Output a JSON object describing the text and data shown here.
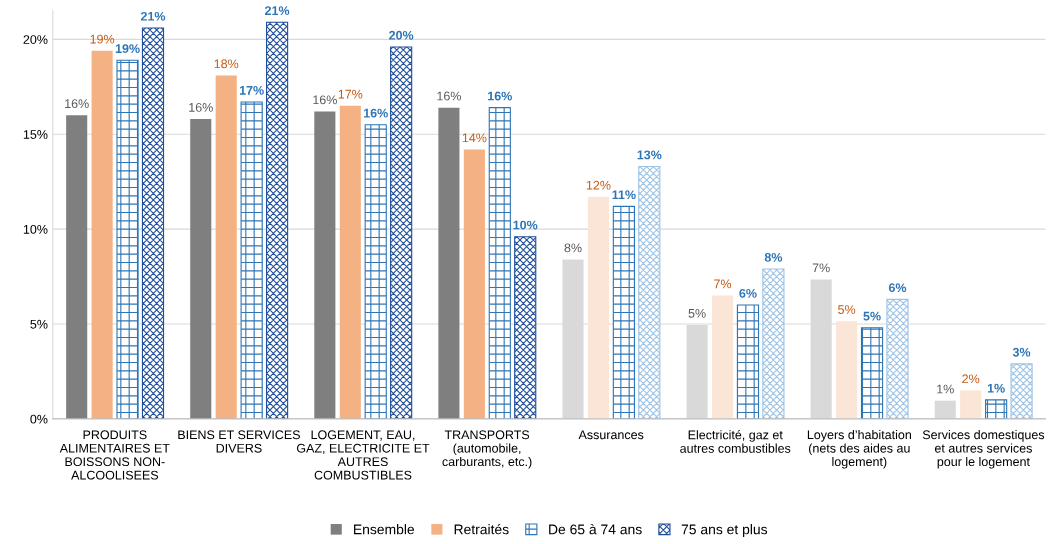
{
  "chart_data": {
    "type": "bar",
    "categories": [
      "PRODUITS\nALIMENTAIRES ET\nBOISSONS NON-\nALCOOLISEES",
      "BIENS ET SERVICES\nDIVERS",
      "LOGEMENT, EAU,\nGAZ, ELECTRICITE ET\nAUTRES\nCOMBUSTIBLES",
      "TRANSPORTS\n(automobile,\ncarburants, etc.)",
      "Assurances",
      "Electricité, gaz et\nautres combustibles",
      "Loyers d’habitation\n(nets des aides au\nlogement)",
      "Services domestiques\net autres services\npour le logement"
    ],
    "series": [
      {
        "name": "Ensemble",
        "color": "#7f7f7f",
        "colors": [
          "#7f7f7f",
          "#7f7f7f",
          "#7f7f7f",
          "#7f7f7f",
          "#d9d9d9",
          "#d9d9d9",
          "#d9d9d9",
          "#d9d9d9"
        ],
        "values": [
          16.0,
          15.8,
          16.2,
          16.4,
          8.4,
          4.95,
          7.35,
          0.96
        ],
        "value_labels": [
          "16%",
          "16%",
          "16%",
          "16%",
          "8%",
          "5%",
          "7%",
          "1%"
        ]
      },
      {
        "name": "Retraités",
        "color": "#f4b183",
        "colors": [
          "#f4b183",
          "#f4b183",
          "#f4b183",
          "#f4b183",
          "#fbe5d6",
          "#fbe5d6",
          "#fbe5d6",
          "#fbe5d6"
        ],
        "values": [
          19.4,
          18.1,
          16.5,
          14.2,
          11.7,
          6.5,
          5.15,
          1.5
        ],
        "value_labels": [
          "19%",
          "18%",
          "17%",
          "14%",
          "12%",
          "7%",
          "5%",
          "2%"
        ]
      },
      {
        "name": "De 65 à 74 ans",
        "color": "#2e75b6",
        "colors": [
          "#2e75b6",
          "#2e75b6",
          "#2e75b6",
          "#2e75b6",
          "#2e75b6",
          "#2e75b6",
          "#2e75b6",
          "#2e75b6"
        ],
        "values": [
          18.9,
          16.7,
          15.5,
          16.4,
          11.2,
          6.0,
          4.8,
          1.0
        ],
        "value_labels": [
          "19%",
          "17%",
          "16%",
          "16%",
          "11%",
          "6%",
          "5%",
          "1%"
        ]
      },
      {
        "name": "75 ans et plus",
        "color": "#1f4e9a",
        "colors": [
          "#1f4e9a",
          "#1f4e9a",
          "#1f4e9a",
          "#1f4e9a",
          "#9dc3e6",
          "#9dc3e6",
          "#9dc3e6",
          "#9dc3e6"
        ],
        "values": [
          20.6,
          20.9,
          19.6,
          9.6,
          13.3,
          7.9,
          6.3,
          2.9
        ],
        "value_labels": [
          "21%",
          "21%",
          "20%",
          "10%",
          "13%",
          "8%",
          "6%",
          "3%"
        ]
      }
    ],
    "ylim": [
      0,
      21.5
    ],
    "yticks": [
      {
        "value": 0,
        "label": "0%"
      },
      {
        "value": 5,
        "label": "5%"
      },
      {
        "value": 10,
        "label": "10%"
      },
      {
        "value": 15,
        "label": "15%"
      },
      {
        "value": 20,
        "label": "20%"
      }
    ],
    "grid": "y",
    "legend": "bottom"
  }
}
